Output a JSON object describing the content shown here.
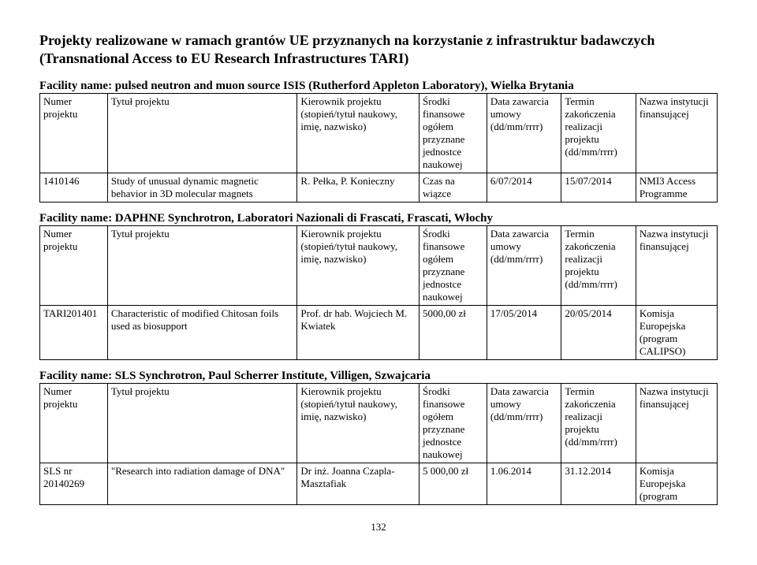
{
  "mainTitle": "Projekty realizowane w ramach grantów UE przyznanych na korzystanie z infrastruktur badawczych (Transnational Access to EU Research Infrastructures TARI)",
  "pageNumber": "132",
  "headers": {
    "col1": "Numer projektu",
    "col2": "Tytuł projektu",
    "col3a": "Kierownik projektu (stopień/tytuł naukowy, imię, nazwisko)",
    "col3b": "Kierownik projektu (stopień/tytuł naukowy, imię, nazwisko)",
    "col4": "Środki finansowe ogółem przyznane jednostce naukowej",
    "col5": "Data zawarcia umowy (dd/mm/rrrr)",
    "col6": "Termin zakończenia realizacji projektu (dd/mm/rrrr)",
    "col7": "Nazwa instytucji finansującej"
  },
  "sections": [
    {
      "facility": "Facility name: pulsed neutron and muon source ISIS (Rutherford Appleton Laboratory), Wielka Brytania",
      "row": {
        "num": "1410146",
        "title": "Study of unusual dynamic magnetic behavior in 3D molecular magnets",
        "kierownik": "R. Pełka, P. Konieczny",
        "srodki": "Czas na wiązce",
        "data": "6/07/2014",
        "termin": "15/07/2014",
        "nazwa": "NMI3 Access Programme"
      }
    },
    {
      "facility": "Facility name: DAPHNE Synchrotron, Laboratori Nazionali di Frascati, Frascati, Włochy",
      "row": {
        "num": "TARI201401",
        "title": "Characteristic of modified Chitosan foils used as biosupport",
        "kierownik": "Prof. dr hab. Wojciech M. Kwiatek",
        "srodki": "5000,00 zł",
        "data": "17/05/2014",
        "termin": "20/05/2014",
        "nazwa": "Komisja Europejska (program CALIPSO)"
      }
    },
    {
      "facility": "Facility name: SLS Synchrotron, Paul Scherrer Institute, Villigen, Szwajcaria",
      "row": {
        "num": "SLS nr 20140269",
        "title": "\"Research into radiation damage of DNA\"",
        "kierownik": "Dr inż. Joanna Czapla-Masztafiak",
        "srodki": "5 000,00 zł",
        "data": "1.06.2014",
        "termin": "31.12.2014",
        "nazwa": "Komisja Europejska (program"
      }
    }
  ]
}
